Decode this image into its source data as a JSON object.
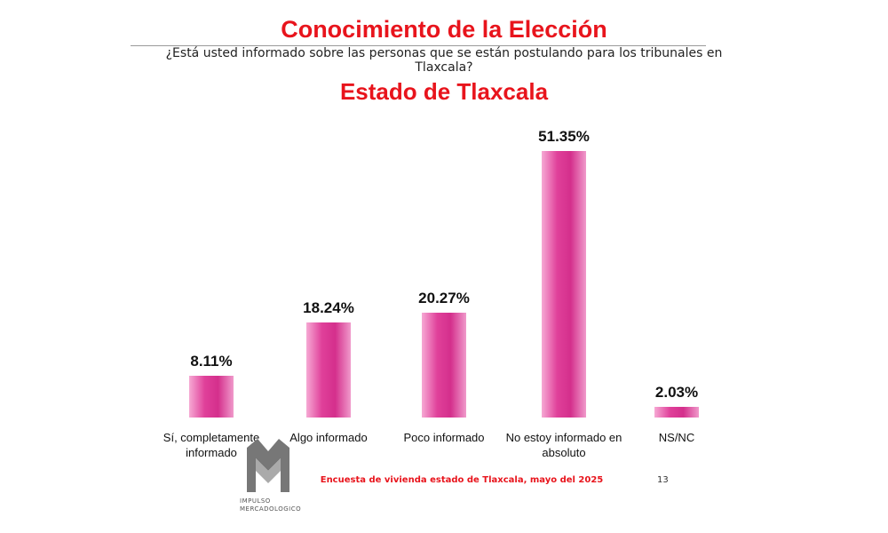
{
  "chart_data": {
    "type": "bar",
    "title": "Conocimiento de la Elección",
    "subtitle": "¿Está usted informado sobre las personas que se están postulando para los tribunales en Tlaxcala?",
    "heading": "Estado de Tlaxcala",
    "categories": [
      "Sí, completamente informado",
      "Algo informado",
      "Poco informado",
      "No estoy informado en absoluto",
      "NS/NC"
    ],
    "values": [
      8.11,
      18.24,
      20.27,
      51.35,
      2.03
    ],
    "value_labels": [
      "8.11%",
      "18.24%",
      "20.27%",
      "51.35%",
      "2.03%"
    ],
    "color": "#e0409a",
    "source": "Encuesta de vivienda estado de Tlaxcala, mayo   del 2025",
    "page_number": "13",
    "logo_text": [
      "IMPULSO",
      "MERCADOLOGICO"
    ]
  }
}
